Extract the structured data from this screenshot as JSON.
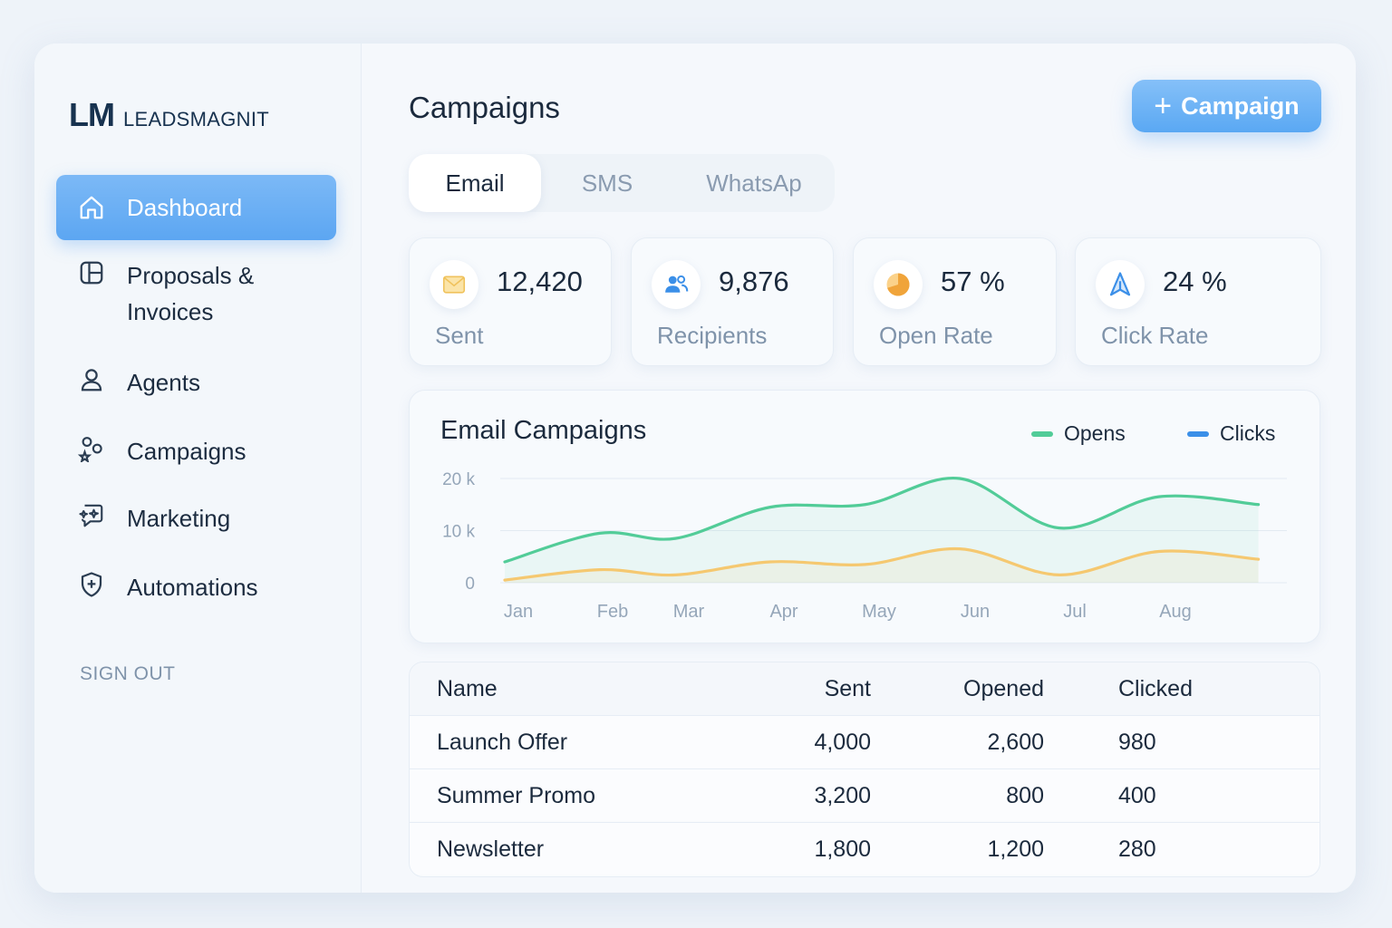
{
  "brand": {
    "mark": "LM",
    "name": "LEADSMAGNIT"
  },
  "sidebar": {
    "items": [
      {
        "label": "Dashboard",
        "icon": "home-icon",
        "active": true
      },
      {
        "label": "Proposals & Invoices",
        "line1": "Proposals &",
        "line2": "Invoices",
        "icon": "layout-icon"
      },
      {
        "label": "Agents",
        "icon": "user-icon"
      },
      {
        "label": "Campaigns",
        "icon": "campaigns-icon"
      },
      {
        "label": "Marketing",
        "icon": "marketing-icon"
      },
      {
        "label": "Automations",
        "icon": "shield-icon"
      }
    ],
    "signout": "SIGN OUT"
  },
  "header": {
    "title": "Campaigns",
    "add_button": "Campaign",
    "add_icon": "plus-icon"
  },
  "tabs": [
    {
      "label": "Email",
      "active": true
    },
    {
      "label": "SMS"
    },
    {
      "label": "WhatsAp"
    }
  ],
  "stats": [
    {
      "value": "12,420",
      "label": "Sent",
      "icon": "mail-icon",
      "color": "#f5c96a"
    },
    {
      "value": "9,876",
      "label": "Recipients",
      "icon": "users-icon",
      "color": "#3b8fe8"
    },
    {
      "value": "57 %",
      "label": "Open Rate",
      "icon": "pie-icon",
      "color": "#f0a43a"
    },
    {
      "value": "24 %",
      "label": "Click Rate",
      "icon": "cursor-icon",
      "color": "#3b8fe8"
    }
  ],
  "chart": {
    "title": "Email Campaigns",
    "legend": [
      {
        "label": "Opens",
        "color": "#52cc98"
      },
      {
        "label": "Clicks",
        "color": "#3b8fe8"
      }
    ]
  },
  "chart_data": {
    "type": "line",
    "title": "Email Campaigns",
    "categories": [
      "Jan",
      "Feb",
      "Mar",
      "Apr",
      "May",
      "Jun",
      "Jul",
      "Aug"
    ],
    "x": [
      0,
      1,
      1.8,
      2.8,
      3.8,
      4.8,
      5.85,
      6.9,
      7.95
    ],
    "y_ticks": [
      "20 k",
      "10 k",
      "0"
    ],
    "ylim": [
      0,
      20000
    ],
    "grid": true,
    "legend_position": "top-right",
    "series": [
      {
        "name": "Opens",
        "color": "#52cc98",
        "values": [
          4000,
          9500,
          8500,
          14500,
          15000,
          20000,
          10500,
          16500,
          15000
        ]
      },
      {
        "name": "",
        "color": "#f5c870",
        "values": [
          500,
          2500,
          1500,
          4000,
          3500,
          6500,
          1500,
          6000,
          4500
        ]
      }
    ]
  },
  "table": {
    "headers": [
      "Name",
      "Sent",
      "Opened",
      "Clicked"
    ],
    "rows": [
      [
        "Launch Offer",
        "4,000",
        "2,600",
        "980"
      ],
      [
        "Summer Promo",
        "3,200",
        "800",
        "400"
      ],
      [
        "Newsletter",
        "1,800",
        "1,200",
        "280"
      ]
    ]
  }
}
